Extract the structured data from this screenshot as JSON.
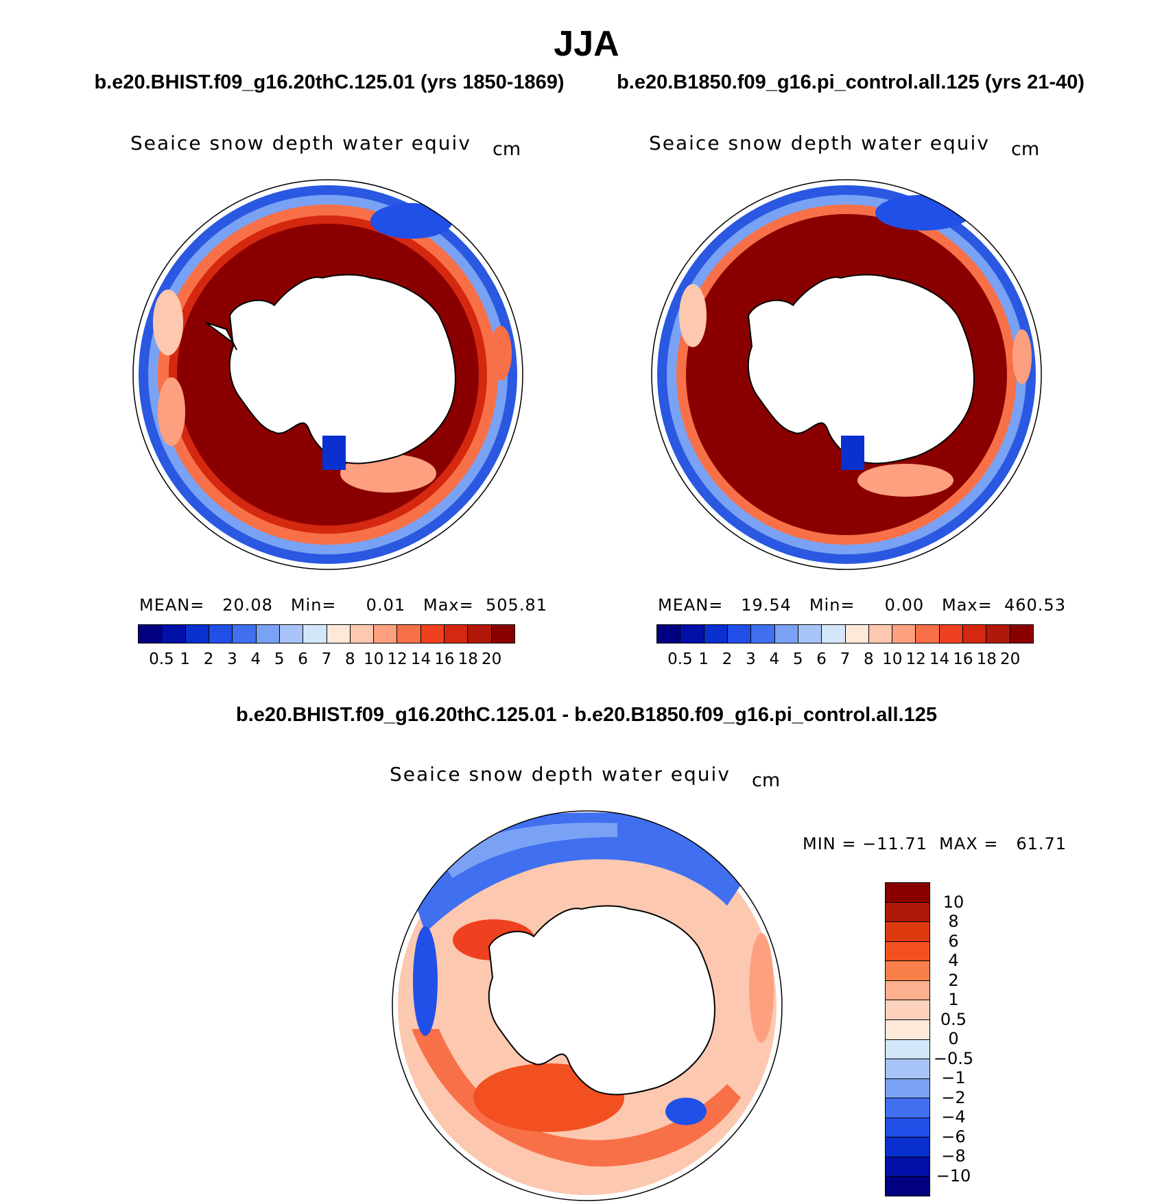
{
  "figure": {
    "title": "JJA",
    "left_subtitle": "b.e20.BHIST.f09_g16.20thC.125.01 (yrs 1850-1869)",
    "right_subtitle": "b.e20.B1850.f09_g16.pi_control.all.125 (yrs 21-40)",
    "diff_subtitle": "b.e20.BHIST.f09_g16.20thC.125.01 - b.e20.B1850.f09_g16.pi_control.all.125"
  },
  "panels": {
    "left": {
      "title": "Seaice snow depth water equiv",
      "units": "cm",
      "stats": "MEAN=   20.08   Min=     0.01   Max=  505.81"
    },
    "right": {
      "title": "Seaice snow depth water equiv",
      "units": "cm",
      "stats": "MEAN=   19.54   Min=     0.00   Max=  460.53"
    },
    "diff": {
      "title": "Seaice snow depth water equiv",
      "units": "cm",
      "stats": "MIN = −11.71  MAX =   61.71"
    }
  },
  "colorbar_abs": {
    "labels": [
      "0.5",
      "1",
      "2",
      "3",
      "4",
      "5",
      "6",
      "7",
      "8",
      "10",
      "12",
      "14",
      "16",
      "18",
      "20"
    ],
    "colors": [
      "#000080",
      "#0010a8",
      "#0a30d0",
      "#2050e8",
      "#4070f0",
      "#7aa2f4",
      "#a8c4f8",
      "#d4e6fa",
      "#fde8da",
      "#fcc8b0",
      "#fca080",
      "#f87048",
      "#ef4020",
      "#d42810",
      "#b01808",
      "#8a0000"
    ]
  },
  "colorbar_diff": {
    "labels": [
      "10",
      "8",
      "6",
      "4",
      "2",
      "1",
      "0.5",
      "0",
      "−0.5",
      "−1",
      "−2",
      "−4",
      "−6",
      "−8",
      "−10"
    ],
    "colors": [
      "#8a0000",
      "#b01808",
      "#de3a10",
      "#f25020",
      "#f88048",
      "#fcb090",
      "#fcd2bc",
      "#fde8da",
      "#d4e6fa",
      "#a8c4f8",
      "#7aa2f4",
      "#4070f0",
      "#2050e8",
      "#0a30d0",
      "#0010a8",
      "#000080"
    ]
  }
}
